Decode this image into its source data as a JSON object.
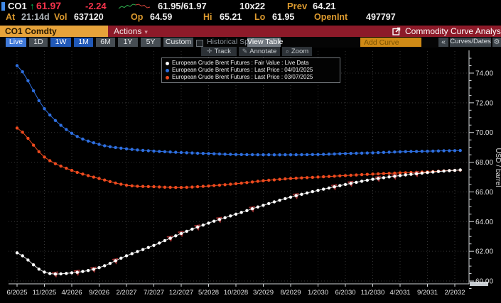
{
  "quote": {
    "ticker": "CO1",
    "tick_arrow": "↑",
    "last": "61.97",
    "change": "-2.24",
    "bid_ask": "61.95/61.97",
    "size": "10x22",
    "prev_label": "Prev",
    "prev": "64.21",
    "at_label": "At",
    "at_value": "21:14d",
    "vol_label": "Vol",
    "vol_value": "637120",
    "op_label": "Op",
    "op_value": "64.59",
    "hi_label": "Hi",
    "hi_value": "65.21",
    "lo_label": "Lo",
    "lo_value": "61.95",
    "openint_label": "OpenInt",
    "openint_value": "497797"
  },
  "titlebar": {
    "security_field": "CO1 Comdty",
    "actions_label": "Actions",
    "app_title": "Commodity Curve Analysis"
  },
  "toolbar": {
    "ranges": [
      {
        "label": "Live",
        "active": true
      },
      {
        "label": "1D",
        "active": false
      },
      {
        "label": "1W",
        "active": true
      },
      {
        "label": "1M",
        "active": true
      },
      {
        "label": "6M",
        "active": false
      },
      {
        "label": "1Y",
        "active": false
      },
      {
        "label": "5Y",
        "active": false
      },
      {
        "label": "Custom",
        "active": false
      }
    ],
    "historical_spot_label": "Historical Spot",
    "view_table_label": "View Table",
    "add_curve_placeholder": "Add Curve",
    "collapse_glyph": "«",
    "curves_dates_label": "Curves/Dates"
  },
  "chart_toolbar": {
    "track": "Track",
    "annotate": "Annotate",
    "zoom": "Zoom",
    "track_icon": "✛",
    "annotate_icon": "✎",
    "zoom_icon": "⌕"
  },
  "icons": {
    "gear": "⚙",
    "actions_caret": "▾"
  },
  "colors": {
    "amber_label": "#dc9a2f",
    "price_red": "#f5334b",
    "tick_green": "#00c257",
    "bar_red": "#8d1a29",
    "field_amber": "#e7a33a",
    "blue_curve": "#2e6fe0",
    "orange_curve": "#ee4a1e",
    "white_curve": "#ffffff",
    "event_marker_red": "#a83333"
  },
  "chart_data": {
    "type": "line",
    "title": "",
    "xlabel": "",
    "ylabel": "USD / barrel",
    "ylim": [
      59.4,
      75.4
    ],
    "yticks": [
      60,
      62,
      64,
      66,
      68,
      70,
      72,
      74
    ],
    "ytick_format": "0.00",
    "grid": "dotted",
    "legend_position": "top-center",
    "x_labels": [
      "6/2025",
      "11/2025",
      "4/2026",
      "9/2026",
      "2/2027",
      "7/2027",
      "12/2027",
      "5/2028",
      "10/2028",
      "3/2029",
      "8/2029",
      "1/2030",
      "6/2030",
      "11/2030",
      "4/2031",
      "9/2031",
      "2/2032"
    ],
    "months_between_labels": 5,
    "total_months": 82,
    "series": [
      {
        "name": "European Crude Brent Futures : Fair Value : Live Data",
        "color": "#ffffff",
        "anchor_months": [
          0,
          5,
          10,
          15,
          20,
          25,
          30,
          35,
          40,
          45,
          50,
          55,
          60,
          65,
          70,
          75,
          80
        ],
        "anchor_values": [
          61.9,
          60.6,
          60.55,
          60.9,
          61.7,
          62.4,
          63.2,
          63.9,
          64.5,
          65.1,
          65.65,
          66.1,
          66.5,
          66.85,
          67.1,
          67.3,
          67.45
        ]
      },
      {
        "name": "European Crude Brent Futures : Last Price : 04/01/2025",
        "color": "#2e6fe0",
        "anchor_months": [
          0,
          5,
          10,
          15,
          20,
          25,
          30,
          35,
          40,
          45,
          50,
          55,
          60,
          65,
          70,
          75,
          80
        ],
        "anchor_values": [
          74.5,
          71.6,
          69.95,
          69.2,
          68.9,
          68.75,
          68.65,
          68.58,
          68.52,
          68.5,
          68.5,
          68.52,
          68.58,
          68.63,
          68.7,
          68.74,
          68.78
        ]
      },
      {
        "name": "European Crude Brent Futures : Last Price : 03/07/2025",
        "color": "#ee4a1e",
        "anchor_months": [
          0,
          5,
          10,
          15,
          20,
          25,
          30,
          35,
          40,
          45,
          50,
          55,
          60,
          65,
          70,
          75,
          80
        ],
        "anchor_values": [
          70.3,
          68.35,
          67.45,
          66.9,
          66.45,
          66.35,
          66.3,
          66.4,
          66.55,
          66.75,
          66.9,
          67.0,
          67.1,
          67.2,
          67.28,
          67.35,
          67.45
        ]
      }
    ],
    "white_curve_event_marker_months": [
      7,
      11,
      14,
      18,
      28,
      30,
      33,
      37,
      43,
      51,
      58,
      61,
      66,
      69,
      73
    ]
  }
}
